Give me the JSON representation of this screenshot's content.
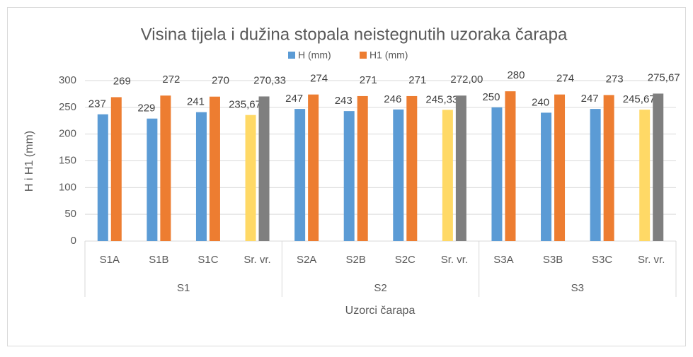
{
  "chart_data": {
    "type": "bar",
    "title": "Visina tijela i dužina stopala neistegnutih uzoraka čarapa",
    "x_label": "Uzorci čarapa",
    "y_label": "H i H1 (mm)",
    "categories": [
      "S1A",
      "S1B",
      "S1C",
      "Sr. vr.",
      "S2A",
      "S2B",
      "S2C",
      "Sr. vr.",
      "S3A",
      "S3B",
      "S3C",
      "Sr. vr."
    ],
    "groups": [
      "S1",
      "S2",
      "S3"
    ],
    "series": [
      {
        "name": "H (mm)",
        "color": "#5b9bd5",
        "colors": [
          "#5b9bd5",
          "#5b9bd5",
          "#5b9bd5",
          "#ffd966",
          "#5b9bd5",
          "#5b9bd5",
          "#5b9bd5",
          "#ffd966",
          "#5b9bd5",
          "#5b9bd5",
          "#5b9bd5",
          "#ffd966"
        ],
        "values": [
          237,
          229,
          241,
          235.67,
          247,
          243,
          246,
          245.33,
          250,
          240,
          247,
          245.67
        ],
        "value_labels": [
          "237",
          "229",
          "241",
          "235,67",
          "247",
          "243",
          "246",
          "245,33",
          "250",
          "240",
          "247",
          "245,67"
        ]
      },
      {
        "name": "H1 (mm)",
        "color": "#ed7d31",
        "colors": [
          "#ed7d31",
          "#ed7d31",
          "#ed7d31",
          "#7f7f7f",
          "#ed7d31",
          "#ed7d31",
          "#ed7d31",
          "#7f7f7f",
          "#ed7d31",
          "#ed7d31",
          "#ed7d31",
          "#7f7f7f"
        ],
        "values": [
          269,
          272,
          270,
          270.33,
          274,
          271,
          271,
          272.0,
          280,
          274,
          273,
          275.67
        ],
        "value_labels": [
          "269",
          "272",
          "270",
          "270,33",
          "274",
          "271",
          "271",
          "272,00",
          "280",
          "274",
          "273",
          "275,67"
        ]
      }
    ],
    "ylim": [
      0,
      300
    ],
    "yticks": [
      0,
      50,
      100,
      150,
      200,
      250,
      300
    ],
    "grid": true,
    "legend": "top"
  }
}
